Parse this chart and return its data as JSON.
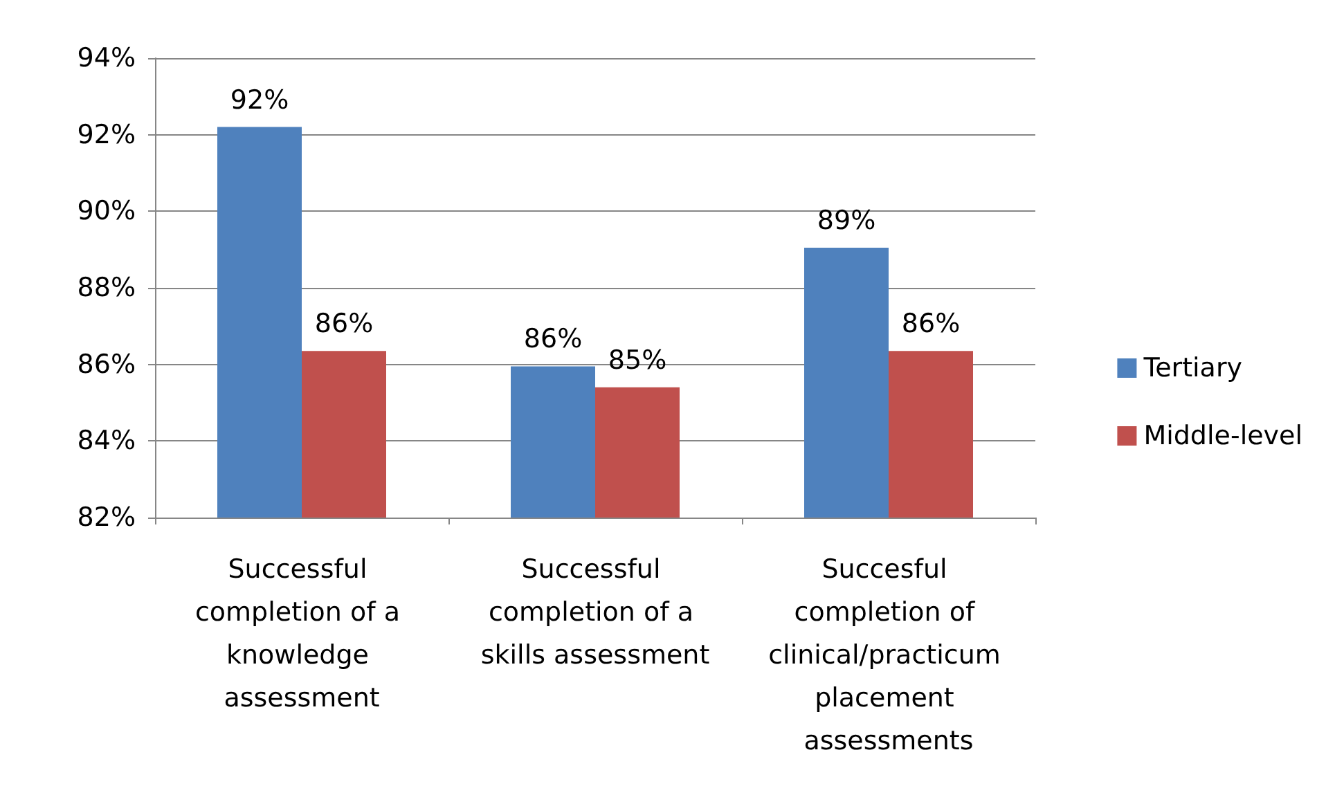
{
  "chart_data": {
    "type": "bar",
    "categories": [
      "Successful completion of a knowledge assessment",
      "Successful completion of a skills assessment",
      "Succesful completion of clinical/practicum placement assessments"
    ],
    "series": [
      {
        "name": "Tertiary",
        "color": "#4f81bd",
        "values": [
          92.2,
          85.95,
          89.05
        ],
        "value_labels": [
          "92%",
          "86%",
          "89%"
        ]
      },
      {
        "name": "Middle-level",
        "color": "#c0504d",
        "values": [
          86.35,
          85.4,
          86.35
        ],
        "value_labels": [
          "86%",
          "85%",
          "86%"
        ]
      }
    ],
    "ylim": [
      82,
      94
    ],
    "yticks": [
      {
        "value": 82,
        "label": "82%"
      },
      {
        "value": 84,
        "label": "84%"
      },
      {
        "value": 86,
        "label": "86%"
      },
      {
        "value": 88,
        "label": "88%"
      },
      {
        "value": 90,
        "label": "90%"
      },
      {
        "value": 92,
        "label": "92%"
      },
      {
        "value": 94,
        "label": "94%"
      }
    ],
    "grid": "y",
    "legend": "right"
  }
}
